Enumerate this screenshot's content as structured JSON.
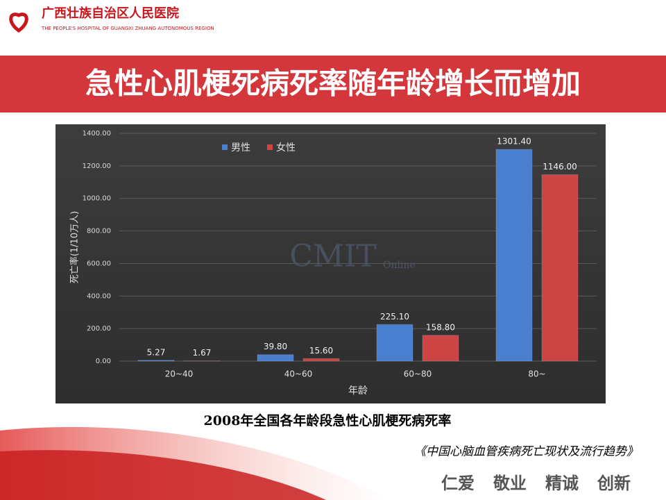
{
  "slide": {
    "hospital_name": "广西壮族自治区人民医院",
    "hospital_name_en": "THE PEOPLE'S HOSPITAL OF GUANGXI ZHUANG AUTONOMOUS REGION",
    "headline": "急性心肌梗死病死率随年龄增长而增加",
    "caption": "2008年全国各年龄段急性心肌梗死病死率",
    "source": "《中国心脑血管疾病死亡现状及流行趋势》",
    "motto": [
      "仁爱",
      "敬业",
      "精诚",
      "创新"
    ]
  },
  "chart_data": {
    "type": "bar",
    "watermark": "CMIT",
    "watermark_sub": "Online",
    "x_label": "年龄",
    "y_label": "死亡率(1/10万人)",
    "categories": [
      "20~40",
      "40~60",
      "60~80",
      "80~"
    ],
    "series": [
      {
        "name": "男性",
        "color": "#4a7fd0",
        "values": [
          5.27,
          39.8,
          225.1,
          1301.4
        ],
        "value_labels": [
          "5.27",
          "39.80",
          "225.10",
          "1301.40"
        ]
      },
      {
        "name": "女性",
        "color": "#cc4444",
        "values": [
          1.67,
          15.6,
          158.8,
          1146
        ],
        "value_labels": [
          "1.67",
          "15.60",
          "158.80",
          "1146.00"
        ]
      }
    ],
    "ylim": [
      0,
      1400
    ],
    "yticks": [
      {
        "value": 0,
        "label": "0.00"
      },
      {
        "value": 200,
        "label": "200.00"
      },
      {
        "value": 400,
        "label": "400.00"
      },
      {
        "value": 600,
        "label": "600.00"
      },
      {
        "value": 800,
        "label": "800.00"
      },
      {
        "value": 1000,
        "label": "1000.00"
      },
      {
        "value": 1200,
        "label": "1200.00"
      },
      {
        "value": 1400,
        "label": "1400.00"
      }
    ],
    "grid": true,
    "legend": "top-left"
  }
}
